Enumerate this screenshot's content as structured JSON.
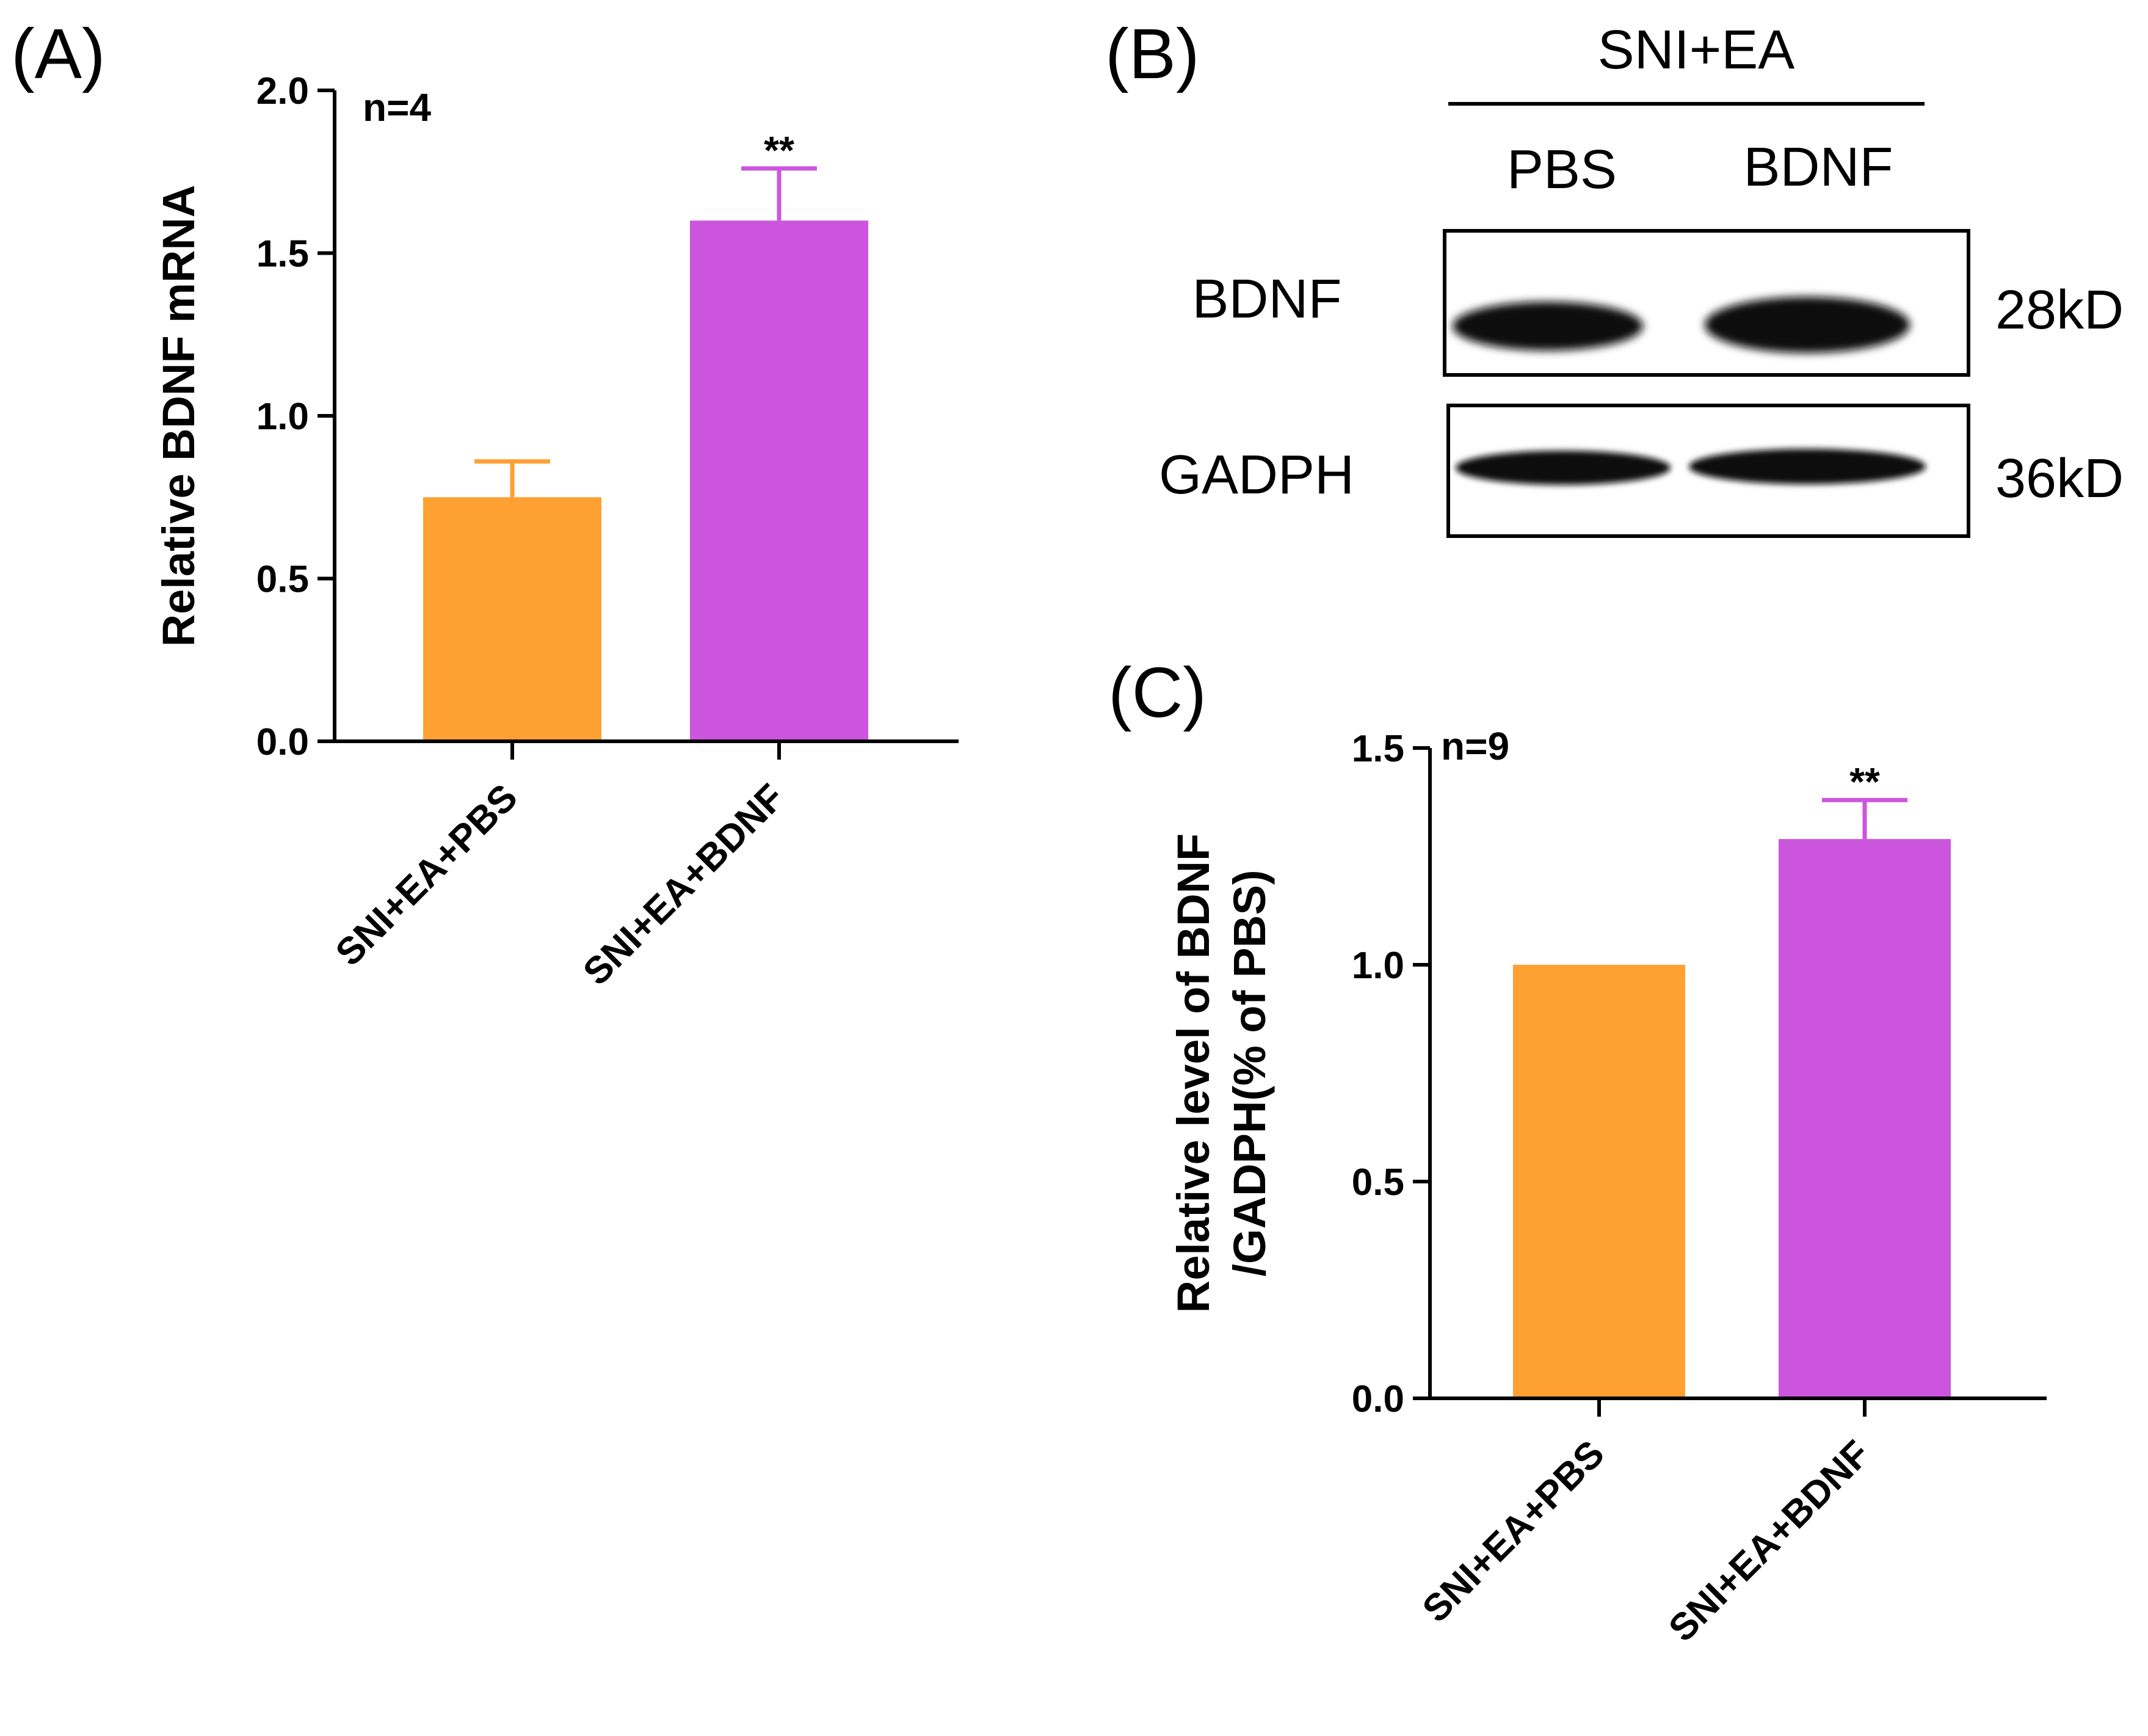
{
  "panels": {
    "a": {
      "letter": "(A)"
    },
    "b": {
      "letter": "(B)",
      "group_label": "SNI+EA",
      "lane_labels": [
        "PBS",
        "BDNF"
      ],
      "rows": [
        {
          "protein": "BDNF",
          "size": "28kD"
        },
        {
          "protein": "GADPH",
          "size": "36kD"
        }
      ]
    },
    "c": {
      "letter": "(C)"
    }
  },
  "chart_data": [
    {
      "type": "bar",
      "panel": "A",
      "title": "",
      "categories": [
        "SNI+EA+PBS",
        "SNI+EA+BDNF"
      ],
      "values": [
        0.75,
        1.6
      ],
      "error_upper": [
        0.11,
        0.16
      ],
      "significance": [
        "",
        "**"
      ],
      "annotation": "n=4",
      "xlabel": "",
      "ylabel": "Relative BDNF mRNA",
      "ylim": [
        0,
        2.0
      ],
      "yticks": [
        0.0,
        0.5,
        1.0,
        1.5,
        2.0
      ],
      "ytick_labels": [
        "0.0",
        "0.5",
        "1.0",
        "1.5",
        "2.0"
      ],
      "colors": [
        "#ffa033",
        "#cc55dd"
      ],
      "grid": false
    },
    {
      "type": "bar",
      "panel": "C",
      "title": "",
      "categories": [
        "SNI+EA+PBS",
        "SNI+EA+BDNF"
      ],
      "values": [
        1.0,
        1.29
      ],
      "error_upper": [
        0.0,
        0.09
      ],
      "significance": [
        "",
        "**"
      ],
      "annotation": "n=9",
      "xlabel": "",
      "ylabel_lines": [
        "Relative level of BDNF",
        "/GADPH(% of PBS)"
      ],
      "ylim": [
        0,
        1.5
      ],
      "yticks": [
        0.0,
        0.5,
        1.0,
        1.5
      ],
      "ytick_labels": [
        "0.0",
        "0.5",
        "1.0",
        "1.5"
      ],
      "colors": [
        "#ffa033",
        "#cc55dd"
      ],
      "grid": false
    }
  ]
}
